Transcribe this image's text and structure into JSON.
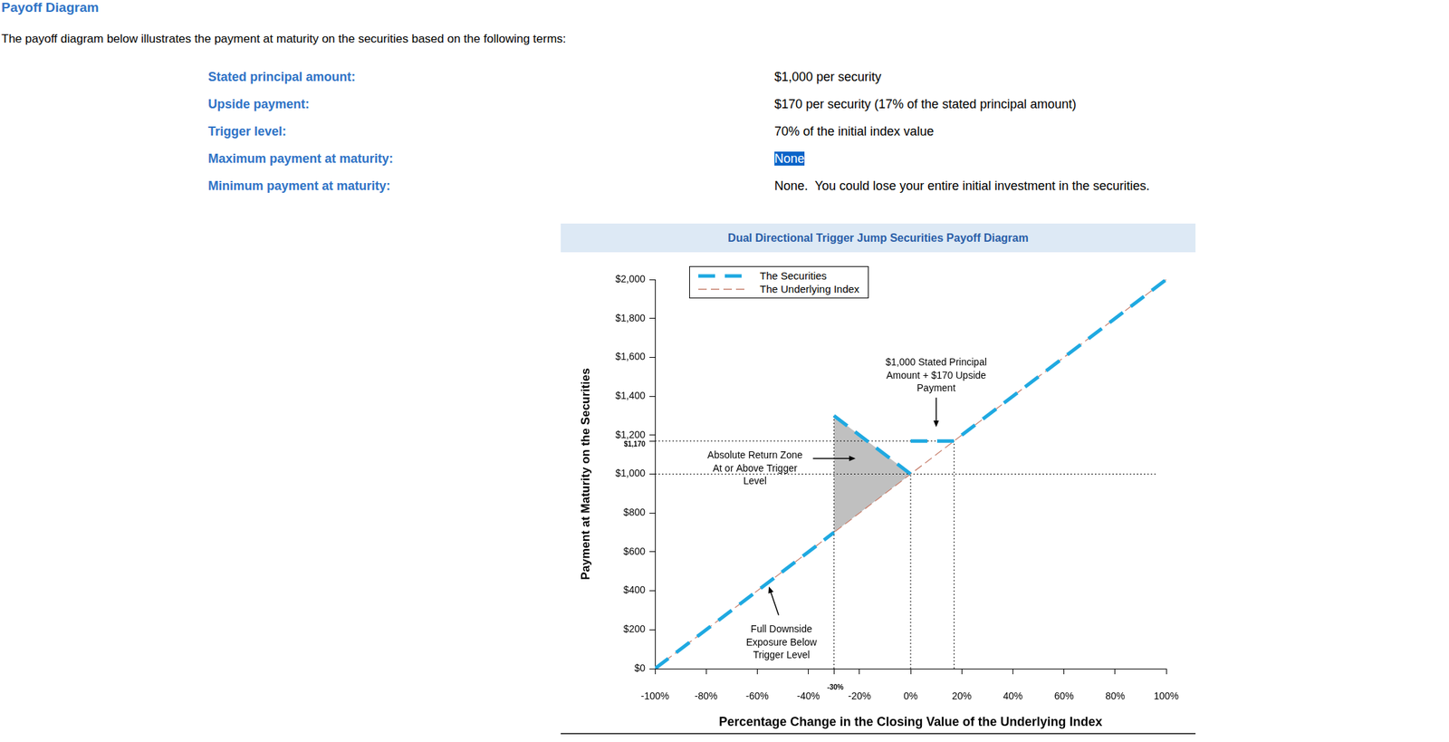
{
  "header": {
    "title": "Payoff Diagram",
    "intro": "The payoff diagram below illustrates the payment at maturity on the securities based on the following terms:"
  },
  "terms": [
    {
      "label": "Stated principal amount:",
      "value": "$1,000 per security"
    },
    {
      "label": "Upside payment:",
      "value": "$170 per security (17% of the stated principal amount)"
    },
    {
      "label": "Trigger level:",
      "value": "70% of the initial index value"
    },
    {
      "label": "Maximum payment at maturity:",
      "value": "None",
      "highlighted": true
    },
    {
      "label": "Minimum payment at maturity:",
      "value": "None.  You could lose your entire initial investment in the securities."
    }
  ],
  "chart_data": {
    "type": "line",
    "title": "Dual Directional Trigger Jump Securities Payoff Diagram",
    "x_label": "Percentage Change in the Closing Value of the Underlying Index",
    "y_label": "Payment at Maturity on the Securities",
    "xlim": [
      -100,
      100
    ],
    "ylim": [
      0,
      2000
    ],
    "xticks": [
      {
        "value": -100,
        "label": "-100%"
      },
      {
        "value": -80,
        "label": "-80%"
      },
      {
        "value": -60,
        "label": "-60%"
      },
      {
        "value": -40,
        "label": "-40%"
      },
      {
        "value": -30,
        "label": "-30%"
      },
      {
        "value": -20,
        "label": "-20%"
      },
      {
        "value": 0,
        "label": "0%"
      },
      {
        "value": 20,
        "label": "20%"
      },
      {
        "value": 40,
        "label": "40%"
      },
      {
        "value": 60,
        "label": "60%"
      },
      {
        "value": 80,
        "label": "80%"
      },
      {
        "value": 100,
        "label": "100%"
      }
    ],
    "yticks": [
      {
        "value": 0,
        "label": "$0"
      },
      {
        "value": 200,
        "label": "$200"
      },
      {
        "value": 400,
        "label": "$400"
      },
      {
        "value": 600,
        "label": "$600"
      },
      {
        "value": 800,
        "label": "$800"
      },
      {
        "value": 1000,
        "label": "$1,000"
      },
      {
        "value": 1170,
        "label": "$1,170"
      },
      {
        "value": 1200,
        "label": "$1,200"
      },
      {
        "value": 1400,
        "label": "$1,400"
      },
      {
        "value": 1600,
        "label": "$1,600"
      },
      {
        "value": 1800,
        "label": "$1,800"
      },
      {
        "value": 2000,
        "label": "$2,000"
      }
    ],
    "grid": false,
    "legend": "upper left",
    "series": [
      {
        "name": "The Securities",
        "color": "#1fa9e1",
        "line_style": "dashed",
        "x": [
          -100,
          -30,
          -30,
          -30,
          0,
          0,
          0,
          17,
          100
        ],
        "values": [
          0,
          700,
          null,
          1300,
          1000,
          null,
          1170,
          1170,
          2000
        ]
      },
      {
        "name": "The Underlying Index",
        "color": "#c8806e",
        "line_style": "dashed",
        "x": [
          -100,
          100
        ],
        "values": [
          0,
          2000
        ]
      }
    ],
    "shaded_region": {
      "x": [
        -30,
        0
      ],
      "upper": [
        1300,
        1000
      ],
      "lower": [
        700,
        1000
      ],
      "color": "#c0c0c0"
    },
    "hlines": [
      {
        "y": 1170,
        "x": [
          -100,
          17
        ],
        "line_style": "dotted"
      },
      {
        "y": 1000,
        "x": [
          -100,
          96
        ],
        "line_style": "dotted"
      }
    ],
    "vlines": [
      {
        "x": -30,
        "y": [
          0,
          1300
        ],
        "line_style": "dotted"
      },
      {
        "x": 0,
        "y": [
          0,
          1000
        ],
        "line_style": "dotted"
      },
      {
        "x": 17,
        "y": [
          0,
          1170
        ],
        "line_style": "dotted"
      }
    ],
    "annotations": [
      {
        "text": "$1,000 Stated Principal\nAmount + $170 Upside\nPayment",
        "x": 10,
        "y": 1170
      },
      {
        "text": "Absolute Return Zone\nAt or Above Trigger\nLevel",
        "x": -21,
        "y": 1080
      },
      {
        "text": "Full Downside\nExposure Below\nTrigger Level",
        "x": -56,
        "y": 440
      }
    ]
  }
}
